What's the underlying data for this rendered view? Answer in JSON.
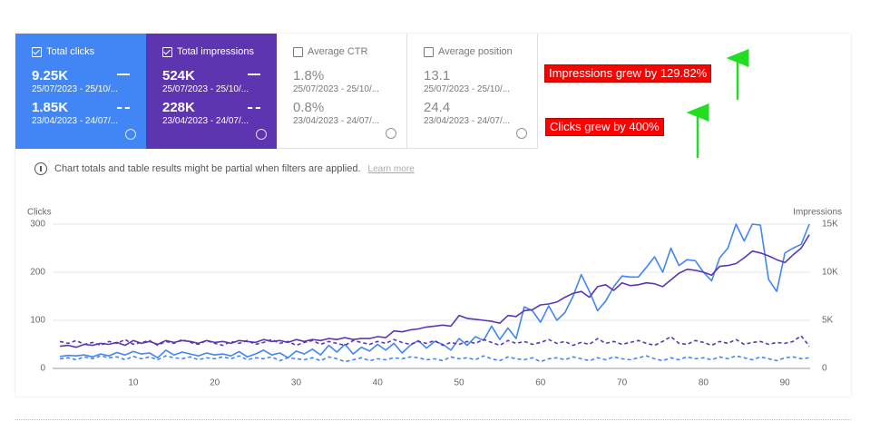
{
  "cards": [
    {
      "label": "Total clicks",
      "checked": true,
      "color": "#4285f4",
      "current_value": "9.25K",
      "current_range": "25/07/2023 - 25/10/...",
      "previous_value": "1.85K",
      "previous_range": "23/04/2023 - 24/07/..."
    },
    {
      "label": "Total impressions",
      "checked": true,
      "color": "#5e35b1",
      "current_value": "524K",
      "current_range": "25/07/2023 - 25/10/...",
      "previous_value": "228K",
      "previous_range": "23/04/2023 - 24/07/..."
    },
    {
      "label": "Average CTR",
      "checked": false,
      "color": "#ffffff",
      "current_value": "1.8%",
      "current_range": "25/07/2023 - 25/10/...",
      "previous_value": "0.8%",
      "previous_range": "23/04/2023 - 24/07/..."
    },
    {
      "label": "Average position",
      "checked": false,
      "color": "#ffffff",
      "current_value": "13.1",
      "current_range": "25/07/2023 - 25/10/...",
      "previous_value": "24.4",
      "previous_range": "23/04/2023 - 24/07/..."
    }
  ],
  "annotations": [
    "Impressions grew by 129.82%",
    "Clicks grew by 400%"
  ],
  "notice": {
    "text": "Chart totals and table results might be partial when filters are applied.",
    "link": "Learn more"
  },
  "chart_data": {
    "type": "line",
    "y_label": "Clicks",
    "y2_label": "Impressions",
    "grid": true,
    "xlim": [
      0.1,
      93.1
    ],
    "xticks": [
      10,
      20,
      30,
      40,
      50,
      60,
      70,
      80,
      90
    ],
    "ylim": [
      0,
      300
    ],
    "yticks": [
      0,
      100,
      200,
      300
    ],
    "y2lim": [
      0,
      15000
    ],
    "y2ticks": [
      0,
      {
        "value": 5000,
        "label": "5K"
      },
      {
        "value": 10000,
        "label": "10K"
      },
      {
        "value": 15000,
        "label": "15K"
      }
    ],
    "x": [
      1,
      2,
      3,
      4,
      5,
      6,
      7,
      8,
      9,
      10,
      11,
      12,
      13,
      14,
      15,
      16,
      17,
      18,
      19,
      20,
      21,
      22,
      23,
      24,
      25,
      26,
      27,
      28,
      29,
      30,
      31,
      32,
      33,
      34,
      35,
      36,
      37,
      38,
      39,
      40,
      41,
      42,
      43,
      44,
      45,
      46,
      47,
      48,
      49,
      50,
      51,
      52,
      53,
      54,
      55,
      56,
      57,
      58,
      59,
      60,
      61,
      62,
      63,
      64,
      65,
      66,
      67,
      68,
      69,
      70,
      71,
      72,
      73,
      74,
      75,
      76,
      77,
      78,
      79,
      80,
      81,
      82,
      83,
      84,
      85,
      86,
      87,
      88,
      89,
      90,
      91,
      92,
      93
    ],
    "series": [
      {
        "color": "#4285f4",
        "dashed": false,
        "axis": "y",
        "values": [
          25,
          27,
          26,
          28,
          24,
          30,
          26,
          33,
          28,
          35,
          30,
          32,
          22,
          38,
          28,
          34,
          30,
          26,
          32,
          28,
          30,
          26,
          35,
          24,
          30,
          38,
          28,
          32,
          22,
          36,
          30,
          40,
          28,
          48,
          34,
          50,
          30,
          44,
          36,
          50,
          38,
          52,
          32,
          48,
          58,
          42,
          56,
          50,
          38,
          62,
          48,
          66,
          58,
          88,
          60,
          84,
          62,
          128,
          120,
          96,
          130,
          100,
          116,
          150,
          195,
          160,
          120,
          140,
          170,
          192,
          190,
          190,
          210,
          232,
          200,
          250,
          214,
          226,
          224,
          200,
          182,
          230,
          250,
          300,
          265,
          300,
          298,
          185,
          160,
          240,
          250,
          258,
          300
        ]
      },
      {
        "color": "#5e35b1",
        "dashed": false,
        "axis": "y2",
        "values": [
          2300,
          2400,
          2200,
          2500,
          2400,
          2600,
          2500,
          2700,
          2400,
          2900,
          2600,
          2800,
          2500,
          2900,
          2700,
          2900,
          2800,
          2600,
          2900,
          2700,
          2800,
          2600,
          2900,
          2800,
          2700,
          3000,
          2800,
          2900,
          2700,
          3000,
          2800,
          3000,
          2900,
          3100,
          3000,
          3200,
          3000,
          3100,
          3100,
          3300,
          3200,
          3900,
          3800,
          4000,
          4100,
          4300,
          4400,
          4500,
          4400,
          5500,
          5200,
          5100,
          5000,
          4900,
          4700,
          5500,
          5400,
          6000,
          6100,
          6600,
          6700,
          6900,
          7400,
          7800,
          8000,
          7400,
          8500,
          8700,
          8100,
          8900,
          8600,
          8700,
          8900,
          8800,
          8500,
          9200,
          9900,
          10300,
          10200,
          10000,
          9700,
          10600,
          10700,
          10900,
          11500,
          12200,
          12000,
          11700,
          11300,
          11000,
          11800,
          12500,
          13900
        ]
      },
      {
        "color": "#4285f4",
        "dashed": true,
        "axis": "y",
        "values": [
          20,
          22,
          18,
          24,
          20,
          26,
          22,
          24,
          18,
          25,
          20,
          24,
          18,
          26,
          22,
          20,
          24,
          18,
          22,
          20,
          24,
          20,
          26,
          18,
          22,
          20,
          24,
          16,
          22,
          20,
          18,
          22,
          16,
          24,
          20,
          14,
          18,
          22,
          16,
          20,
          18,
          22,
          20,
          24,
          22,
          18,
          20,
          16,
          24,
          20,
          22,
          18,
          26,
          20,
          16,
          24,
          20,
          18,
          22,
          14,
          20,
          22,
          18,
          24,
          20,
          16,
          22,
          18,
          24,
          20,
          18,
          22,
          26,
          20,
          16,
          22,
          18,
          24,
          20,
          22,
          18,
          24,
          20,
          26,
          22,
          18,
          24,
          20,
          16,
          22,
          24,
          20,
          22
        ]
      },
      {
        "color": "#5e35b1",
        "dashed": true,
        "axis": "y2",
        "values": [
          2800,
          2600,
          2900,
          2500,
          2700,
          2400,
          2800,
          2600,
          3000,
          2500,
          2700,
          2900,
          2400,
          2800,
          2600,
          3000,
          2700,
          2500,
          2900,
          2600,
          2400,
          2800,
          2600,
          2900,
          2500,
          2700,
          3000,
          2600,
          2800,
          2400,
          2700,
          2900,
          2500,
          2800,
          2600,
          2400,
          2900,
          2700,
          2500,
          2800,
          2600,
          3000,
          2700,
          2500,
          2800,
          2600,
          2900,
          2400,
          2700,
          2500,
          2800,
          2600,
          3000,
          2700,
          2400,
          2900,
          2600,
          2800,
          2500,
          2700,
          3000,
          2600,
          2800,
          2400,
          2700,
          2500,
          3100,
          2600,
          2800,
          2500,
          2700,
          2900,
          2600,
          2400,
          2800,
          3300,
          2600,
          2500,
          2900,
          2700,
          2400,
          2800,
          2600,
          3000,
          2500,
          2700,
          2800,
          2500,
          2700,
          2600,
          2800,
          3400,
          2300
        ]
      }
    ]
  }
}
